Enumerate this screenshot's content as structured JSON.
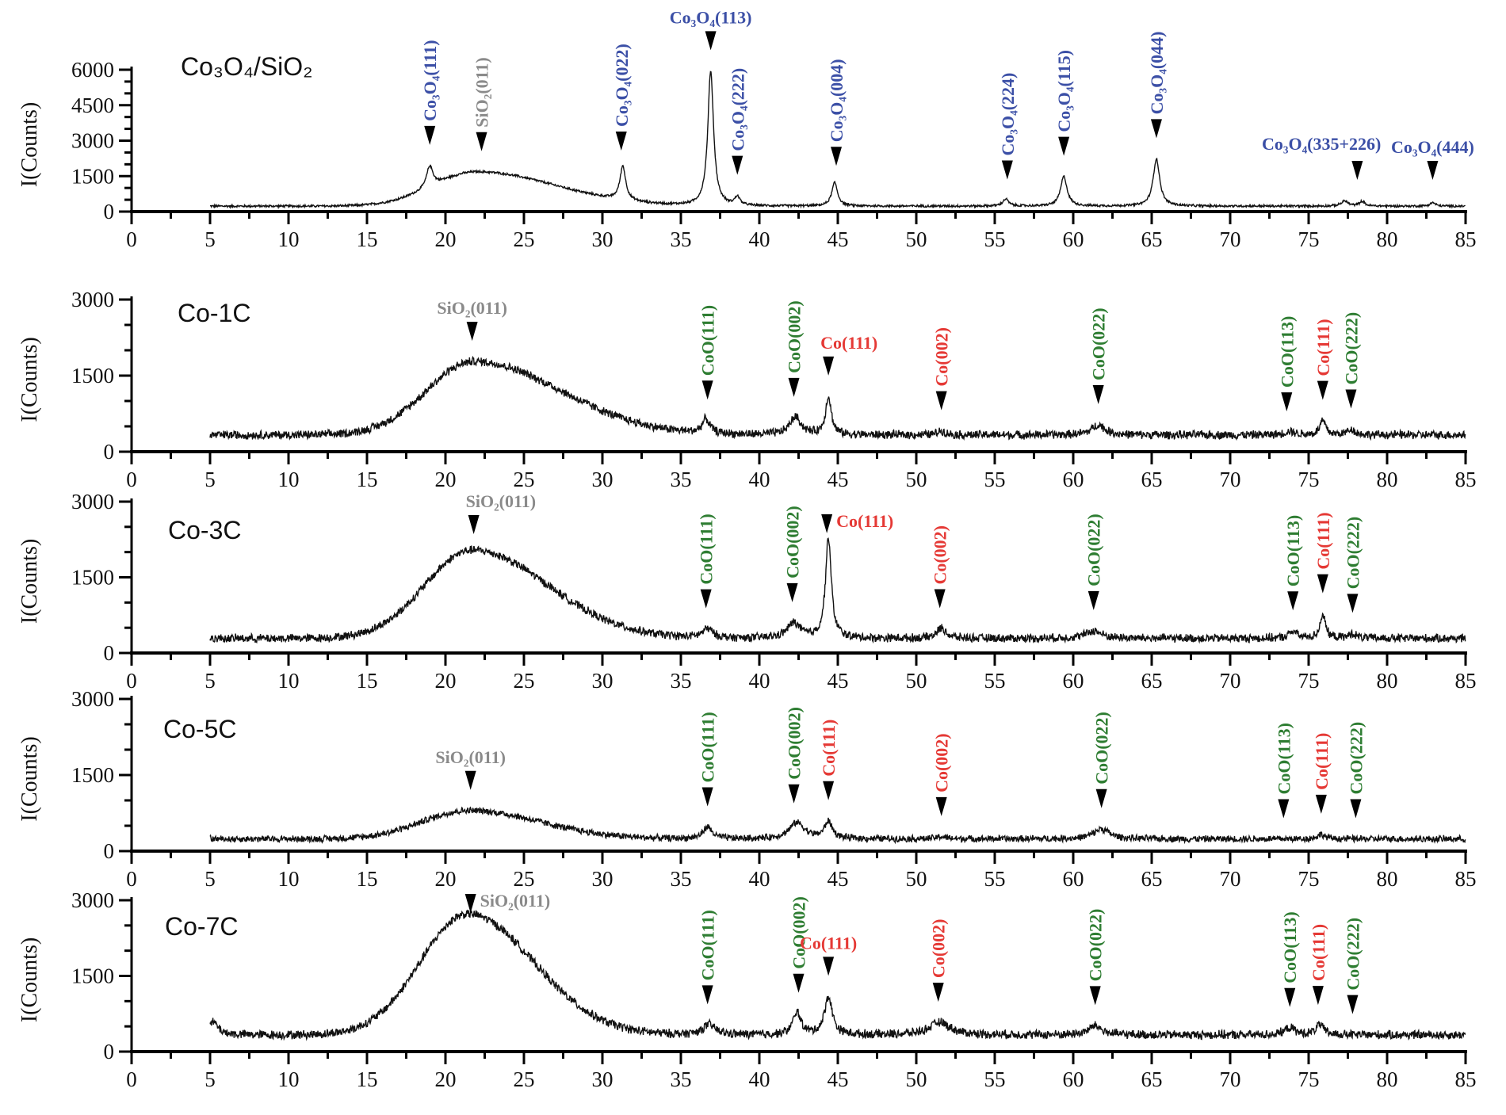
{
  "chart_data": {
    "type": "line",
    "xlabel": "",
    "ylabel": "I(Counts)",
    "xlim": [
      0,
      85
    ],
    "xticks": [
      0,
      5,
      10,
      15,
      20,
      25,
      30,
      35,
      40,
      45,
      50,
      55,
      60,
      65,
      70,
      75,
      80,
      85
    ],
    "grid": false,
    "colors": {
      "Co3O4": "#3b4fa6",
      "SiO2": "#8a8a8a",
      "CoO": "#2e7d32",
      "Co": "#e53935",
      "trace": "#111111"
    },
    "panels": [
      {
        "title": "Co₃O₄/SiO₂",
        "ylim": [
          0,
          6000
        ],
        "yticks": [
          0,
          1500,
          3000,
          4500,
          6000
        ],
        "background": {
          "baseline": 230,
          "hump_center": 22.0,
          "hump_height": 1450,
          "hump_sigma_left": 2.8,
          "hump_sigma_right": 5.0,
          "noise": 55
        },
        "peaks": [
          {
            "x": 19.0,
            "y": 900,
            "w": 0.25
          },
          {
            "x": 31.3,
            "y": 1450,
            "w": 0.22
          },
          {
            "x": 36.9,
            "y": 5700,
            "w": 0.22
          },
          {
            "x": 38.6,
            "y": 350,
            "w": 0.2
          },
          {
            "x": 44.8,
            "y": 1000,
            "w": 0.22
          },
          {
            "x": 55.7,
            "y": 300,
            "w": 0.22
          },
          {
            "x": 59.4,
            "y": 1250,
            "w": 0.25
          },
          {
            "x": 65.3,
            "y": 2000,
            "w": 0.25
          },
          {
            "x": 77.3,
            "y": 220,
            "w": 0.25
          },
          {
            "x": 78.4,
            "y": 200,
            "w": 0.2
          },
          {
            "x": 82.9,
            "y": 150,
            "w": 0.2
          }
        ],
        "annotations": [
          {
            "label": "Co₃O₄(111)",
            "x": 19.0,
            "phase": "Co3O4",
            "placement": "vertical"
          },
          {
            "label": "SiO₂(011)",
            "x": 22.3,
            "phase": "SiO2",
            "placement": "vertical"
          },
          {
            "label": "Co₃O₄(022)",
            "x": 31.2,
            "phase": "Co3O4",
            "placement": "vertical"
          },
          {
            "label": "Co₃O₄(113)",
            "x": 36.9,
            "phase": "Co3O4",
            "placement": "above"
          },
          {
            "label": "Co₃O₄(222)",
            "x": 38.6,
            "phase": "Co3O4",
            "placement": "vertical"
          },
          {
            "label": "Co₃O₄(004)",
            "x": 44.9,
            "phase": "Co3O4",
            "placement": "vertical"
          },
          {
            "label": "Co₃O₄(224)",
            "x": 55.8,
            "phase": "Co3O4",
            "placement": "vertical"
          },
          {
            "label": "Co₃O₄(115)",
            "x": 59.4,
            "phase": "Co3O4",
            "placement": "vertical"
          },
          {
            "label": "Co₃O₄(044)",
            "x": 65.3,
            "phase": "Co3O4",
            "placement": "vertical"
          },
          {
            "label": "Co₃O₄(335+226)",
            "x": 78.1,
            "phase": "Co3O4",
            "placement": "above-left"
          },
          {
            "label": "Co₃O₄(444)",
            "x": 82.9,
            "phase": "Co3O4",
            "placement": "above"
          }
        ]
      },
      {
        "title": "Co-1C",
        "ylim": [
          0,
          3000
        ],
        "yticks": [
          0,
          1500,
          3000
        ],
        "background": {
          "baseline": 330,
          "hump_center": 21.8,
          "hump_height": 1450,
          "hump_sigma_left": 3.0,
          "hump_sigma_right": 5.5,
          "noise": 95
        },
        "peaks": [
          {
            "x": 36.6,
            "y": 280,
            "w": 0.3
          },
          {
            "x": 42.3,
            "y": 350,
            "w": 0.45
          },
          {
            "x": 44.4,
            "y": 750,
            "w": 0.22
          },
          {
            "x": 51.6,
            "y": 80,
            "w": 0.3
          },
          {
            "x": 61.6,
            "y": 200,
            "w": 0.5
          },
          {
            "x": 73.8,
            "y": 70,
            "w": 0.4
          },
          {
            "x": 75.9,
            "y": 280,
            "w": 0.22
          },
          {
            "x": 77.7,
            "y": 110,
            "w": 0.3
          }
        ],
        "annotations": [
          {
            "label": "SiO₂(011)",
            "x": 21.7,
            "phase": "SiO2",
            "placement": "above"
          },
          {
            "label": "CoO(111)",
            "x": 36.7,
            "phase": "CoO",
            "placement": "vertical"
          },
          {
            "label": "CoO(002)",
            "x": 42.2,
            "phase": "CoO",
            "placement": "vertical"
          },
          {
            "label": "Co(111)",
            "x": 44.4,
            "phase": "Co",
            "placement": "above-right"
          },
          {
            "label": "Co(002)",
            "x": 51.6,
            "phase": "Co",
            "placement": "vertical"
          },
          {
            "label": "CoO(022)",
            "x": 61.6,
            "phase": "CoO",
            "placement": "vertical"
          },
          {
            "label": "CoO(113)",
            "x": 73.6,
            "phase": "CoO",
            "placement": "vertical"
          },
          {
            "label": "Co(111)",
            "x": 75.9,
            "phase": "Co",
            "placement": "vertical"
          },
          {
            "label": "CoO(222)",
            "x": 77.7,
            "phase": "CoO",
            "placement": "vertical"
          }
        ]
      },
      {
        "title": "Co-3C",
        "ylim": [
          0,
          3000
        ],
        "yticks": [
          0,
          1500,
          3000
        ],
        "background": {
          "baseline": 290,
          "hump_center": 21.7,
          "hump_height": 1750,
          "hump_sigma_left": 3.0,
          "hump_sigma_right": 4.8,
          "noise": 95
        },
        "peaks": [
          {
            "x": 36.7,
            "y": 180,
            "w": 0.4
          },
          {
            "x": 42.2,
            "y": 300,
            "w": 0.5
          },
          {
            "x": 44.4,
            "y": 2000,
            "w": 0.22
          },
          {
            "x": 51.6,
            "y": 200,
            "w": 0.35
          },
          {
            "x": 61.3,
            "y": 150,
            "w": 0.6
          },
          {
            "x": 74.0,
            "y": 140,
            "w": 0.3
          },
          {
            "x": 75.9,
            "y": 480,
            "w": 0.2
          },
          {
            "x": 77.8,
            "y": 90,
            "w": 0.3
          }
        ],
        "annotations": [
          {
            "label": "SiO₂(011)",
            "x": 21.8,
            "phase": "SiO2",
            "placement": "above-right"
          },
          {
            "label": "CoO(111)",
            "x": 36.6,
            "phase": "CoO",
            "placement": "vertical"
          },
          {
            "label": "CoO(002)",
            "x": 42.1,
            "phase": "CoO",
            "placement": "vertical"
          },
          {
            "label": "Co(111)",
            "x": 44.3,
            "phase": "Co",
            "placement": "right"
          },
          {
            "label": "Co(002)",
            "x": 51.5,
            "phase": "Co",
            "placement": "vertical"
          },
          {
            "label": "CoO(022)",
            "x": 61.3,
            "phase": "CoO",
            "placement": "vertical"
          },
          {
            "label": "CoO(113)",
            "x": 74.0,
            "phase": "CoO",
            "placement": "vertical"
          },
          {
            "label": "Co(111)",
            "x": 75.9,
            "phase": "Co",
            "placement": "vertical"
          },
          {
            "label": "CoO(222)",
            "x": 77.8,
            "phase": "CoO",
            "placement": "vertical"
          }
        ]
      },
      {
        "title": "Co-5C",
        "ylim": [
          0,
          3000
        ],
        "yticks": [
          0,
          1500,
          3000
        ],
        "background": {
          "baseline": 240,
          "hump_center": 21.5,
          "hump_height": 560,
          "hump_sigma_left": 3.0,
          "hump_sigma_right": 4.5,
          "noise": 75
        },
        "peaks": [
          {
            "x": 36.7,
            "y": 230,
            "w": 0.35
          },
          {
            "x": 42.4,
            "y": 320,
            "w": 0.6
          },
          {
            "x": 44.4,
            "y": 330,
            "w": 0.3
          },
          {
            "x": 51.6,
            "y": 40,
            "w": 0.4
          },
          {
            "x": 61.8,
            "y": 200,
            "w": 0.6
          },
          {
            "x": 75.8,
            "y": 90,
            "w": 0.3
          }
        ],
        "annotations": [
          {
            "label": "SiO₂(011)",
            "x": 21.6,
            "phase": "SiO2",
            "placement": "above"
          },
          {
            "label": "CoO(111)",
            "x": 36.7,
            "phase": "CoO",
            "placement": "vertical"
          },
          {
            "label": "CoO(002)",
            "x": 42.2,
            "phase": "CoO",
            "placement": "vertical"
          },
          {
            "label": "Co(111)",
            "x": 44.4,
            "phase": "Co",
            "placement": "vertical"
          },
          {
            "label": "Co(002)",
            "x": 51.6,
            "phase": "Co",
            "placement": "vertical"
          },
          {
            "label": "CoO(022)",
            "x": 61.8,
            "phase": "CoO",
            "placement": "vertical"
          },
          {
            "label": "CoO(113)",
            "x": 73.4,
            "phase": "CoO",
            "placement": "vertical"
          },
          {
            "label": "Co(111)",
            "x": 75.8,
            "phase": "Co",
            "placement": "vertical"
          },
          {
            "label": "CoO(222)",
            "x": 78.0,
            "phase": "CoO",
            "placement": "vertical"
          }
        ]
      },
      {
        "title": "Co-7C",
        "ylim": [
          0,
          3000
        ],
        "yticks": [
          0,
          1500,
          3000
        ],
        "background": {
          "baseline": 330,
          "hump_center": 21.4,
          "hump_height": 2400,
          "hump_sigma_left": 3.0,
          "hump_sigma_right": 4.2,
          "noise": 100
        },
        "peaks": [
          {
            "x": 5.2,
            "y": 250,
            "w": 0.4
          },
          {
            "x": 36.8,
            "y": 200,
            "w": 0.5
          },
          {
            "x": 42.4,
            "y": 450,
            "w": 0.3
          },
          {
            "x": 44.4,
            "y": 750,
            "w": 0.3
          },
          {
            "x": 51.5,
            "y": 250,
            "w": 0.8
          },
          {
            "x": 61.4,
            "y": 180,
            "w": 0.5
          },
          {
            "x": 73.8,
            "y": 140,
            "w": 0.4
          },
          {
            "x": 75.7,
            "y": 200,
            "w": 0.3
          }
        ],
        "annotations": [
          {
            "label": "SiO₂(011)",
            "x": 21.6,
            "phase": "SiO2",
            "placement": "right"
          },
          {
            "label": "CoO(111)",
            "x": 36.7,
            "phase": "CoO",
            "placement": "vertical"
          },
          {
            "label": "CoO(002)",
            "x": 42.5,
            "phase": "CoO",
            "placement": "vertical"
          },
          {
            "label": "Co(111)",
            "x": 44.4,
            "phase": "Co",
            "placement": "above"
          },
          {
            "label": "Co(002)",
            "x": 51.4,
            "phase": "Co",
            "placement": "vertical"
          },
          {
            "label": "CoO(022)",
            "x": 61.4,
            "phase": "CoO",
            "placement": "vertical"
          },
          {
            "label": "CoO(113)",
            "x": 73.8,
            "phase": "CoO",
            "placement": "vertical"
          },
          {
            "label": "Co(111)",
            "x": 75.6,
            "phase": "Co",
            "placement": "vertical"
          },
          {
            "label": "CoO(222)",
            "x": 77.8,
            "phase": "CoO",
            "placement": "vertical"
          }
        ]
      }
    ]
  }
}
